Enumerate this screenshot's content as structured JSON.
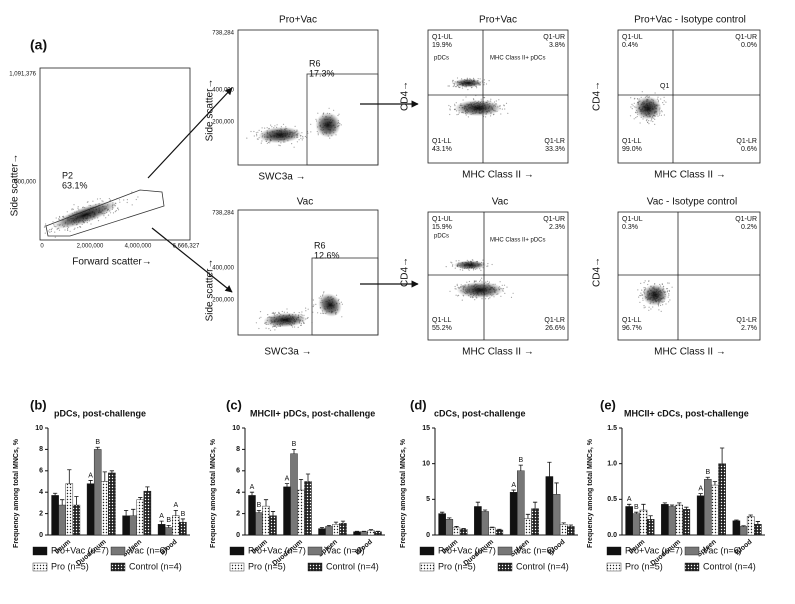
{
  "figure_label": "(a)",
  "flow_plots": {
    "fsc": {
      "y_label": "Side scatter→",
      "x_label": "Forward scatter→",
      "yticks": [
        "1,091,376",
        "500,000"
      ],
      "xticks": [
        "0",
        "2,000,000",
        "4,000,000",
        "6,666,327"
      ],
      "gate": "P2",
      "gate_percent": "63.1%"
    },
    "pro_vac_swc3a": {
      "title": "Pro+Vac",
      "y_label": "Side scatter→",
      "x_label": "SWC3a →",
      "yticks": [
        "738,284",
        "400,000",
        "200,000"
      ],
      "gate": "R6",
      "gate_percent": "17.3%"
    },
    "pro_vac_cd4": {
      "title": "Pro+Vac",
      "y_label": "CD4→",
      "x_label": "MHC Class II →",
      "quadrants": [
        {
          "name": "Q1-UL",
          "percent": "19.9%"
        },
        {
          "name": "Q1-UR",
          "percent": "3.8%"
        },
        {
          "name": "Q1-LL",
          "percent": "43.1%"
        },
        {
          "name": "Q1-LR",
          "percent": "33.3%"
        }
      ],
      "notes": [
        "pDCs",
        "MHC Class II+ pDCs"
      ]
    },
    "pro_vac_isotype": {
      "title": "Pro+Vac - Isotype control",
      "y_label": "CD4→",
      "x_label": "MHC Class II →",
      "gate": "Q1",
      "quadrants": [
        {
          "name": "Q1-UL",
          "percent": "0.4%"
        },
        {
          "name": "Q1-UR",
          "percent": "0.0%"
        },
        {
          "name": "Q1-LL",
          "percent": "99.0%"
        },
        {
          "name": "Q1-LR",
          "percent": "0.6%"
        }
      ]
    },
    "vac_swc3a": {
      "title": "Vac",
      "y_label": "Side scatter→",
      "x_label": "SWC3a →",
      "yticks": [
        "738,284",
        "400,000",
        "200,000"
      ],
      "gate": "R6",
      "gate_percent": "12.6%"
    },
    "vac_cd4": {
      "title": "Vac",
      "y_label": "CD4→",
      "x_label": "MHC Class II →",
      "quadrants": [
        {
          "name": "Q1-UL",
          "percent": "15.9%"
        },
        {
          "name": "Q1-UR",
          "percent": "2.3%"
        },
        {
          "name": "Q1-LL",
          "percent": "55.2%"
        },
        {
          "name": "Q1-LR",
          "percent": "26.6%"
        }
      ],
      "notes": [
        "pDCs",
        "MHC Class II+ pDCs"
      ]
    },
    "vac_isotype": {
      "title": "Vac - Isotype control",
      "y_label": "CD4→",
      "x_label": "MHC Class II →",
      "quadrants": [
        {
          "name": "Q1-UL",
          "percent": "0.3%"
        },
        {
          "name": "Q1-UR",
          "percent": "0.2%"
        },
        {
          "name": "Q1-LL",
          "percent": "96.7%"
        },
        {
          "name": "Q1-LR",
          "percent": "2.7%"
        }
      ]
    }
  },
  "chart_data": [
    {
      "type": "bar",
      "panel": "(b)",
      "title": "pDCs, post-challenge",
      "y_label": "Frequency among total MNCs, %",
      "categories": [
        "Ileum",
        "Duodenum",
        "Spleen",
        "Blood"
      ],
      "ylim": [
        0,
        10
      ],
      "yticks": [
        0,
        2,
        4,
        6,
        8,
        10
      ],
      "series": [
        {
          "name": "Pro+Vac (n=7)",
          "color": "#111111",
          "values": [
            3.7,
            4.8,
            1.8,
            1.0
          ],
          "errors": [
            0.2,
            0.3,
            0.5,
            0.3
          ]
        },
        {
          "name": "Vac (n=6)",
          "color": "#777777",
          "values": [
            2.8,
            8.0,
            1.8,
            0.7
          ],
          "errors": [
            0.5,
            0.2,
            0.6,
            0.2
          ]
        },
        {
          "name": "Pro (n=5)",
          "color": "#ffffff",
          "dot_color": "#222222",
          "values": [
            4.8,
            5.0,
            3.3,
            1.8
          ],
          "errors": [
            1.3,
            0.9,
            0.2,
            0.5
          ]
        },
        {
          "name": "Control (n=4)",
          "color": "#222222",
          "dot_color": "#ffffff",
          "values": [
            2.8,
            5.8,
            4.1,
            1.2
          ],
          "errors": [
            0.8,
            0.2,
            0.4,
            0.3
          ]
        }
      ],
      "letters": [
        {
          "text": "A",
          "series": 0,
          "category": 1
        },
        {
          "text": "B",
          "series": 1,
          "category": 1
        },
        {
          "text": "A",
          "series": 0,
          "category": 3
        },
        {
          "text": "B",
          "series": 1,
          "category": 3
        },
        {
          "text": "A",
          "series": 2,
          "category": 3
        },
        {
          "text": "B",
          "series": 3,
          "category": 3
        }
      ]
    },
    {
      "type": "bar",
      "panel": "(c)",
      "title": "MHCII+ pDCs, post-challenge",
      "y_label": "Frequency among total MNCs, %",
      "categories": [
        "Ileum",
        "Duodenum",
        "Spleen",
        "Blood"
      ],
      "ylim": [
        0,
        10
      ],
      "yticks": [
        0,
        2,
        4,
        6,
        8,
        10
      ],
      "series": [
        {
          "name": "Pro+Vac (n=7)",
          "color": "#111111",
          "values": [
            3.7,
            4.5,
            0.6,
            0.3
          ],
          "errors": [
            0.3,
            0.3,
            0.1,
            0.05
          ]
        },
        {
          "name": "Vac (n=6)",
          "color": "#777777",
          "values": [
            2.1,
            7.6,
            0.8,
            0.3
          ],
          "errors": [
            0.2,
            0.4,
            0.1,
            0.05
          ]
        },
        {
          "name": "Pro (n=5)",
          "color": "#ffffff",
          "dot_color": "#222222",
          "values": [
            2.7,
            4.2,
            1.0,
            0.4
          ],
          "errors": [
            0.6,
            1.0,
            0.2,
            0.1
          ]
        },
        {
          "name": "Control (n=4)",
          "color": "#222222",
          "dot_color": "#ffffff",
          "values": [
            1.8,
            5.0,
            1.1,
            0.3
          ],
          "errors": [
            0.4,
            0.7,
            0.2,
            0.05
          ]
        }
      ],
      "letters": [
        {
          "text": "A",
          "series": 0,
          "category": 0
        },
        {
          "text": "B",
          "series": 1,
          "category": 0
        },
        {
          "text": "A",
          "series": 0,
          "category": 1
        },
        {
          "text": "B",
          "series": 1,
          "category": 1
        }
      ]
    },
    {
      "type": "bar",
      "panel": "(d)",
      "title": "cDCs, post-challenge",
      "y_label": "Frequency among total MNCs, %",
      "categories": [
        "Ileum",
        "Duodenum",
        "Spleen",
        "Blood"
      ],
      "ylim": [
        0,
        15
      ],
      "yticks": [
        0,
        5,
        10,
        15
      ],
      "series": [
        {
          "name": "Pro+Vac (n=7)",
          "color": "#111111",
          "values": [
            3.0,
            4.0,
            6.0,
            8.2
          ],
          "errors": [
            0.2,
            0.6,
            0.3,
            2.0
          ]
        },
        {
          "name": "Vac (n=6)",
          "color": "#777777",
          "values": [
            2.2,
            3.3,
            9.0,
            5.7
          ],
          "errors": [
            0.2,
            0.2,
            0.8,
            1.6
          ]
        },
        {
          "name": "Pro (n=5)",
          "color": "#ffffff",
          "dot_color": "#222222",
          "values": [
            1.0,
            1.0,
            2.3,
            1.5
          ],
          "errors": [
            0.2,
            0.1,
            0.6,
            0.2
          ]
        },
        {
          "name": "Control (n=4)",
          "color": "#222222",
          "dot_color": "#ffffff",
          "values": [
            0.8,
            0.7,
            3.7,
            1.2
          ],
          "errors": [
            0.1,
            0.1,
            0.9,
            0.2
          ]
        }
      ],
      "letters": [
        {
          "text": "A",
          "series": 0,
          "category": 2
        },
        {
          "text": "B",
          "series": 1,
          "category": 2
        }
      ]
    },
    {
      "type": "bar",
      "panel": "(e)",
      "title": "MHCII+ cDCs, post-challenge",
      "y_label": "Frequency among total MNCs, %",
      "categories": [
        "Ileum",
        "Duodenum",
        "Spleen",
        "Blood"
      ],
      "ylim": [
        0,
        1.5
      ],
      "yticks": [
        {
          "value": 0,
          "label": "0.0"
        },
        0.5,
        {
          "value": 1,
          "label": "1.0"
        },
        1.5
      ],
      "series": [
        {
          "name": "Pro+Vac (n=7)",
          "color": "#111111",
          "values": [
            0.4,
            0.43,
            0.55,
            0.2
          ],
          "errors": [
            0.03,
            0.02,
            0.03,
            0.01
          ]
        },
        {
          "name": "Vac (n=6)",
          "color": "#777777",
          "values": [
            0.3,
            0.4,
            0.78,
            0.12
          ],
          "errors": [
            0.02,
            0.02,
            0.03,
            0.01
          ]
        },
        {
          "name": "Pro (n=5)",
          "color": "#ffffff",
          "dot_color": "#222222",
          "values": [
            0.35,
            0.42,
            0.7,
            0.26
          ],
          "errors": [
            0.08,
            0.03,
            0.05,
            0.02
          ]
        },
        {
          "name": "Control (n=4)",
          "color": "#222222",
          "dot_color": "#ffffff",
          "values": [
            0.22,
            0.36,
            1.0,
            0.15
          ],
          "errors": [
            0.05,
            0.03,
            0.22,
            0.04
          ]
        }
      ],
      "letters": [
        {
          "text": "A",
          "series": 0,
          "category": 0
        },
        {
          "text": "B",
          "series": 1,
          "category": 0
        },
        {
          "text": "A",
          "series": 0,
          "category": 2
        },
        {
          "text": "B",
          "series": 1,
          "category": 2
        }
      ]
    }
  ]
}
